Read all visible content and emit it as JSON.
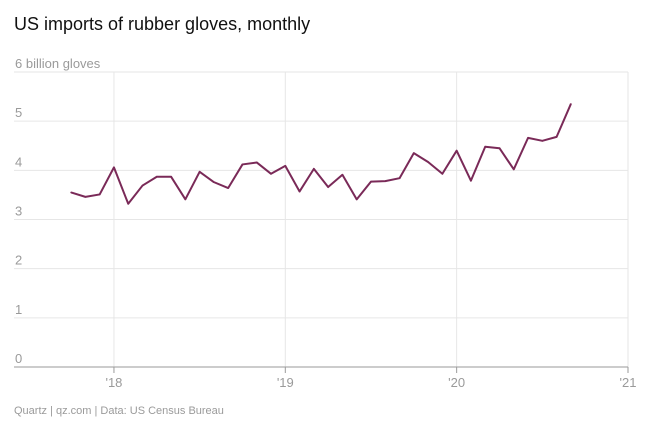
{
  "header": {
    "title": "US imports of rubber gloves, monthly"
  },
  "footer": {
    "source": "Quartz | qz.com | Data: US Census Bureau"
  },
  "colors": {
    "line": "#7a2a58",
    "grid": "#e6e6e6",
    "axis": "#9a9a9a",
    "label": "#9a9a9a"
  },
  "chart_data": {
    "type": "line",
    "title": "US imports of rubber gloves, monthly",
    "ylabel": "",
    "y_unit": "billion gloves",
    "ylim": [
      0,
      6
    ],
    "y_ticks": [
      0,
      1,
      2,
      3,
      4,
      5,
      6
    ],
    "y_tick_labels": [
      "0",
      "1",
      "2",
      "3",
      "4",
      "5",
      "6 billion gloves"
    ],
    "xlim": [
      "2017-06",
      "2021-01"
    ],
    "x_ticks": [
      "2018-01",
      "2019-01",
      "2020-01",
      "2021-01"
    ],
    "x_tick_labels": [
      "'18",
      "'19",
      "'20",
      "'21"
    ],
    "grid": true,
    "series": [
      {
        "x": [
          "2017-10",
          "2017-11",
          "2017-12",
          "2018-01",
          "2018-02",
          "2018-03",
          "2018-04",
          "2018-05",
          "2018-06",
          "2018-07",
          "2018-08",
          "2018-09",
          "2018-10",
          "2018-11",
          "2018-12",
          "2019-01",
          "2019-02",
          "2019-03",
          "2019-04",
          "2019-05",
          "2019-06",
          "2019-07",
          "2019-08",
          "2019-09",
          "2019-10",
          "2019-11",
          "2019-12",
          "2020-01",
          "2020-02",
          "2020-03",
          "2020-04",
          "2020-05",
          "2020-06",
          "2020-07",
          "2020-08",
          "2020-09"
        ],
        "values": [
          3.55,
          3.46,
          3.51,
          4.06,
          3.32,
          3.69,
          3.87,
          3.87,
          3.41,
          3.97,
          3.76,
          3.64,
          4.12,
          4.16,
          3.93,
          4.09,
          3.57,
          4.03,
          3.66,
          3.91,
          3.41,
          3.77,
          3.78,
          3.84,
          4.35,
          4.17,
          3.93,
          4.4,
          3.79,
          4.48,
          4.45,
          4.02,
          4.66,
          4.6,
          4.68,
          5.35
        ]
      }
    ]
  }
}
